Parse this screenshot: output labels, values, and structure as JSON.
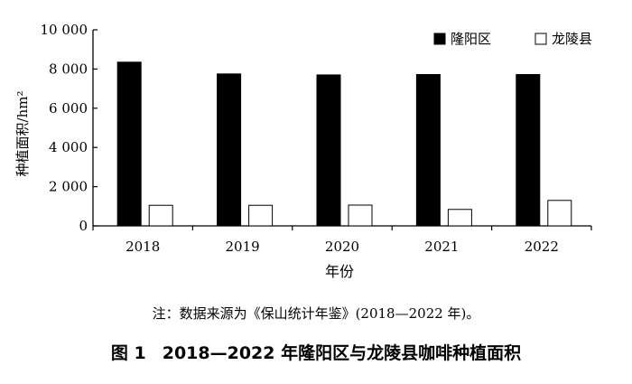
{
  "figure": {
    "note": "注：数据来源为《保山统计年鉴》(2018—2022 年)。",
    "caption_number": "图 1",
    "caption_title": "2018—2022 年隆阳区与龙陵县咖啡种植面积"
  },
  "chart_data": {
    "type": "bar",
    "categories": [
      "2018",
      "2019",
      "2020",
      "2021",
      "2022"
    ],
    "series": [
      {
        "name": "隆阳区",
        "values": [
          8350,
          7750,
          7700,
          7720,
          7720
        ],
        "color": "#000000"
      },
      {
        "name": "龙陵县",
        "values": [
          1050,
          1050,
          1060,
          840,
          1300
        ],
        "color": "#ffffff"
      }
    ],
    "xlabel": "年份",
    "ylabel": "种植面积/hm²",
    "ylim": [
      0,
      10000
    ],
    "yticks": [
      0,
      2000,
      4000,
      6000,
      8000,
      10000
    ],
    "ytick_labels": [
      "0",
      "2 000",
      "4 000",
      "6 000",
      "8 000",
      "10 000"
    ],
    "grid": false,
    "legend_position": "top-right"
  }
}
